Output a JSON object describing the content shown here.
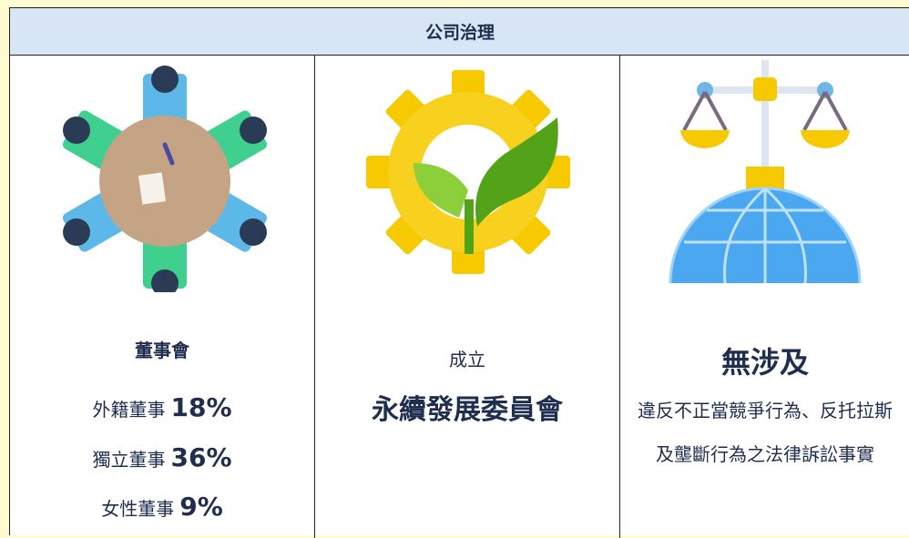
{
  "header": {
    "title": "公司治理"
  },
  "columns": [
    {
      "heading": "董事會",
      "items": [
        {
          "label": "外籍董事",
          "value": "18%"
        },
        {
          "label": "獨立董事",
          "value": "36%"
        },
        {
          "label": "女性董事",
          "value": "9%"
        }
      ]
    },
    {
      "subheading": "成立",
      "heading": "永續發展委員會"
    },
    {
      "heading": "無涉及",
      "description": "違反不正當競爭行為、反托拉斯及壟斷行為之法律訴訟事實"
    }
  ]
}
